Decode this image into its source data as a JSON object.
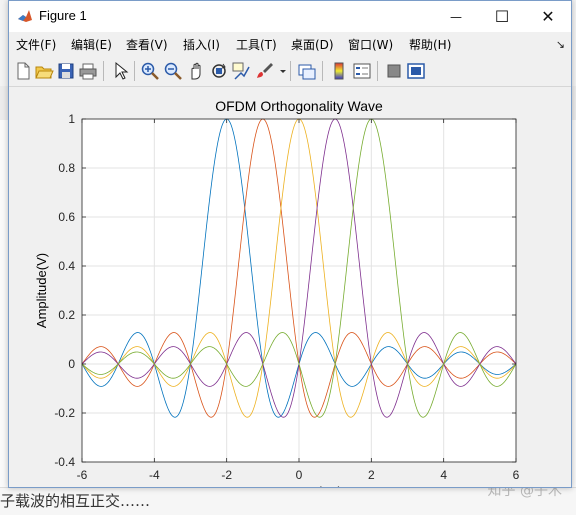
{
  "window": {
    "title": "Figure 1",
    "minimize_glyph": "—",
    "maximize_glyph": "☐",
    "close_glyph": "✕"
  },
  "menu": [
    "文件(F)",
    "编辑(E)",
    "查看(V)",
    "插入(I)",
    "工具(T)",
    "桌面(D)",
    "窗口(W)",
    "帮助(H)"
  ],
  "menu_overflow_glyph": "↘",
  "toolbar": [
    "new-figure-icon",
    "open-file-icon",
    "save-icon",
    "print-icon",
    "edit-plot-arrow-icon",
    "zoom-in-icon",
    "zoom-out-icon",
    "pan-hand-icon",
    "rotate-3d-icon",
    "data-cursor-icon",
    "brush-icon",
    "link-plot-icon",
    "colorbar-icon",
    "legend-icon",
    "hide-plot-tools-icon",
    "show-plot-tools-icon"
  ],
  "background": {
    "bottom_text": "子载波的相互正交……",
    "watermark": "知乎 @子木"
  },
  "colors": {
    "series": [
      "#0072BD",
      "#D95319",
      "#EDB120",
      "#7E2F8E",
      "#77AC30"
    ],
    "axes_bg": "#ffffff",
    "figure_bg": "#f0f0f0",
    "grid": "#e3e3e3"
  },
  "chart_data": {
    "type": "line",
    "title": "OFDM Orthogonality Wave",
    "xlabel": "Frequency(Hz)",
    "ylabel": "Amplitude(V)",
    "xlim": [
      -6,
      6
    ],
    "ylim": [
      -0.4,
      1
    ],
    "xticks": [
      -6,
      -4,
      -2,
      0,
      2,
      4,
      6
    ],
    "yticks": [
      -0.4,
      -0.2,
      0,
      0.2,
      0.4,
      0.6,
      0.8,
      1
    ],
    "grid": true,
    "function": "sinc(f - fc)",
    "series": [
      {
        "center": -2,
        "color": "#0072BD"
      },
      {
        "center": -1,
        "color": "#D95319"
      },
      {
        "center": 0,
        "color": "#EDB120"
      },
      {
        "center": 1,
        "color": "#7E2F8E"
      },
      {
        "center": 2,
        "color": "#77AC30"
      }
    ]
  }
}
